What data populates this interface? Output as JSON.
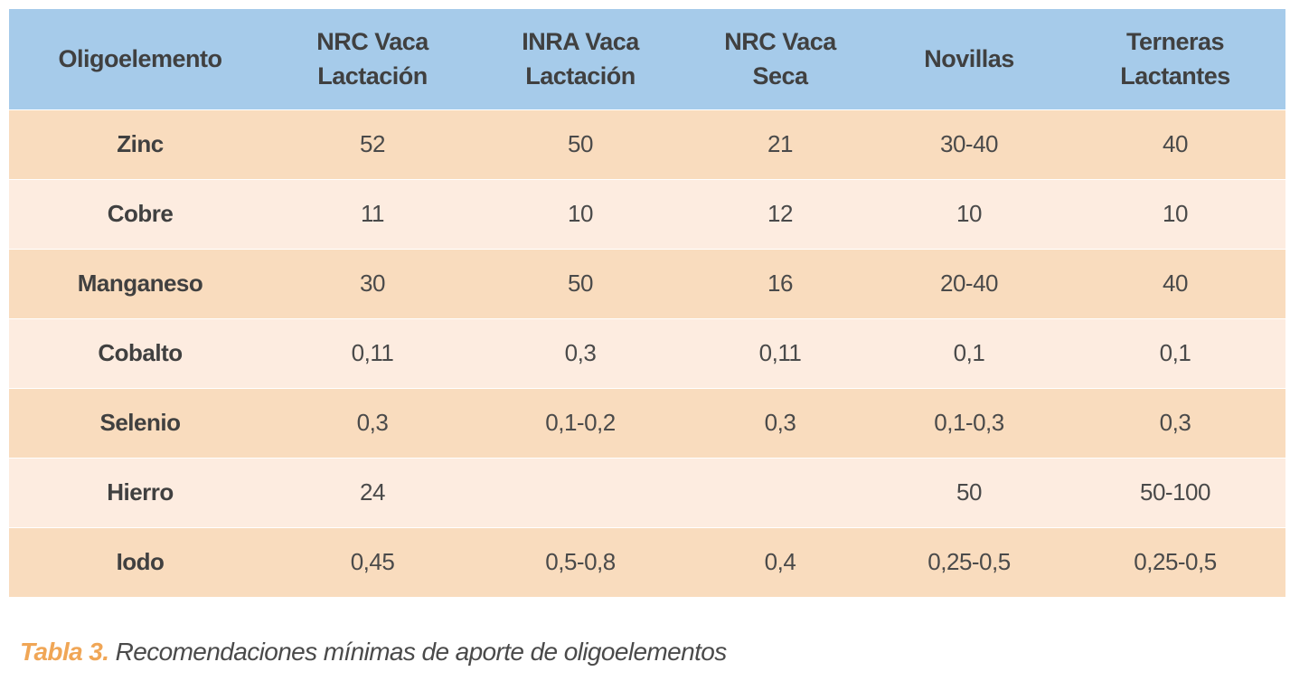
{
  "table": {
    "headers": [
      [
        "Oligoelemento"
      ],
      [
        "NRC Vaca",
        "Lactación"
      ],
      [
        "INRA Vaca",
        "Lactación"
      ],
      [
        "NRC Vaca",
        "Seca"
      ],
      [
        "Novillas"
      ],
      [
        "Terneras",
        "Lactantes"
      ]
    ],
    "rows": [
      {
        "name": "Zinc",
        "values": [
          "52",
          "50",
          "21",
          "30-40",
          "40"
        ]
      },
      {
        "name": "Cobre",
        "values": [
          "11",
          "10",
          "12",
          "10",
          "10"
        ]
      },
      {
        "name": "Manganeso",
        "values": [
          "30",
          "50",
          "16",
          "20-40",
          "40"
        ]
      },
      {
        "name": "Cobalto",
        "values": [
          "0,11",
          "0,3",
          "0,11",
          "0,1",
          "0,1"
        ]
      },
      {
        "name": "Selenio",
        "values": [
          "0,3",
          "0,1-0,2",
          "0,3",
          "0,1-0,3",
          "0,3"
        ]
      },
      {
        "name": "Hierro",
        "values": [
          "24",
          "",
          "",
          "50",
          "50-100"
        ]
      },
      {
        "name": "Iodo",
        "values": [
          "0,45",
          "0,5-0,8",
          "0,4",
          "0,25-0,5",
          "0,25-0,5"
        ]
      }
    ],
    "colors": {
      "header_bg": "#a6cbea",
      "row_odd_bg": "#f9dcbe",
      "row_even_bg": "#fdece0",
      "caption_tag": "#f0a656"
    }
  },
  "caption": {
    "tag": "Tabla 3.",
    "text": " Recomendaciones mínimas de aporte de oligoelementos"
  }
}
